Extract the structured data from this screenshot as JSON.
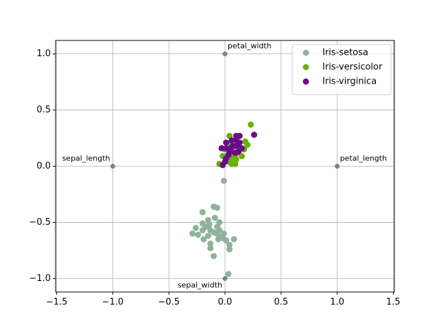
{
  "chart_data": {
    "type": "radviz",
    "xlim": [
      -1.51,
      1.51
    ],
    "ylim": [
      -1.12,
      1.12
    ],
    "xticks": [
      {
        "value": -1.5,
        "label": "−1.5"
      },
      {
        "value": -1.0,
        "label": "−1.0"
      },
      {
        "value": -0.5,
        "label": "−0.5"
      },
      {
        "value": 0,
        "label": "0.0"
      },
      0.5,
      {
        "value": 1.0,
        "label": "1.0"
      },
      1.5
    ],
    "yticks": [
      {
        "value": -1.0,
        "label": "−1.0"
      },
      {
        "value": -0.5,
        "label": "−0.5"
      },
      {
        "value": 0,
        "label": "0.0"
      },
      0.5,
      {
        "value": 1.0,
        "label": "1.0"
      }
    ],
    "grid": true,
    "legend": "upper right",
    "anchors": [
      {
        "label": "sepal_length",
        "x": -1,
        "y": 0
      },
      {
        "label": "sepal_width",
        "x": 0,
        "y": -1
      },
      {
        "label": "petal_length",
        "x": 1,
        "y": 0
      },
      {
        "label": "petal_width",
        "x": 0,
        "y": 1
      }
    ],
    "anchor_color": "#808080",
    "series": [
      {
        "name": "Iris-setosa",
        "color": "#8fb39a",
        "x": [
          -0.29,
          -0.26,
          -0.2,
          -0.1,
          -0.07,
          -0.05,
          -0.01,
          0.03,
          0.08,
          0.04,
          0.04,
          -0.1,
          -0.13,
          -0.19,
          -0.2,
          -0.2,
          -0.14,
          -0.09,
          -0.05,
          -0.01,
          0.01,
          -0.04,
          -0.15,
          -0.13,
          -0.17,
          -0.06,
          -0.02,
          -0.1,
          -0.13,
          -0.07,
          -0.24,
          -0.07,
          -0.15
        ],
        "y": [
          -0.6,
          -0.55,
          -0.41,
          -0.36,
          -0.37,
          -0.57,
          -0.13,
          -0.96,
          -0.65,
          -0.7,
          -0.74,
          -0.8,
          -0.73,
          -0.65,
          -0.57,
          -0.51,
          -0.52,
          -0.46,
          -0.5,
          -0.6,
          -0.66,
          -0.63,
          -0.62,
          -0.69,
          -0.54,
          -0.65,
          -0.64,
          -0.59,
          -0.57,
          -0.54,
          -0.61,
          -0.6,
          -0.48
        ]
      },
      {
        "name": "Iris-versicolor",
        "color": "#6aaf0a",
        "x": [
          0.23,
          0.04,
          0.2,
          0.15,
          -0.05,
          0.06,
          0.09,
          0.18,
          0.11,
          0.01,
          -0.02,
          0.07,
          0.13,
          0.05,
          0.1,
          0.03,
          0.17,
          0.09,
          0.0,
          0.06
        ],
        "y": [
          0.37,
          0.27,
          0.19,
          0.09,
          0.02,
          0.02,
          0.02,
          0.22,
          0.12,
          0.07,
          0.09,
          0.13,
          0.16,
          0.2,
          0.06,
          0.04,
          0.15,
          0.1,
          0.15,
          0.07
        ]
      },
      {
        "name": "Iris-virginica",
        "color": "#6a0a8a",
        "x": [
          0.26,
          0.13,
          0.1,
          0.01,
          0.06,
          -0.02,
          0.0,
          0.01,
          -0.03,
          0.05,
          0.1,
          0.13,
          0.09,
          0.12,
          0.04,
          0.07,
          0.15,
          0.01,
          0.1,
          0.03
        ],
        "y": [
          0.28,
          0.27,
          0.27,
          0.21,
          0.23,
          0.01,
          0.04,
          0.07,
          0.16,
          0.16,
          0.18,
          0.21,
          0.12,
          0.13,
          0.12,
          0.18,
          0.16,
          0.16,
          0.23,
          0.1
        ]
      }
    ]
  }
}
